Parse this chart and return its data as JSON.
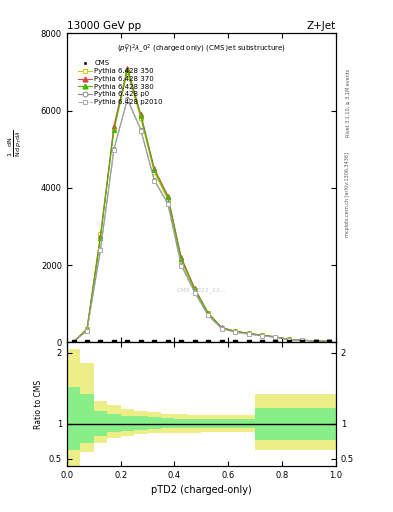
{
  "title_left": "13000 GeV pp",
  "title_right": "Z+Jet",
  "annotation": "$(p_T^D)^2\\lambda\\_0^2$ (charged only) (CMS jet substructure)",
  "right_label_top": "Rivet 3.1.10, ≥ 3.1M events",
  "right_label_bottom": "mcplots.cern.ch [arXiv:1306.3436]",
  "watermark": "CMS_2021_11...",
  "xlabel": "pTD2 (charged-only)",
  "xlim": [
    0.0,
    1.0
  ],
  "ylim_main": [
    0,
    8000
  ],
  "ylim_ratio": [
    0.4,
    2.15
  ],
  "x_centers": [
    0.025,
    0.075,
    0.125,
    0.175,
    0.225,
    0.275,
    0.325,
    0.375,
    0.425,
    0.475,
    0.525,
    0.575,
    0.625,
    0.675,
    0.725,
    0.775,
    0.825,
    0.875,
    0.925,
    0.975
  ],
  "x_edges": [
    0.0,
    0.05,
    0.1,
    0.15,
    0.2,
    0.25,
    0.3,
    0.35,
    0.4,
    0.45,
    0.5,
    0.55,
    0.6,
    0.65,
    0.7,
    0.75,
    0.8,
    0.85,
    0.9,
    0.95,
    1.0
  ],
  "p350_values": [
    15,
    350,
    2800,
    5500,
    7000,
    5800,
    4400,
    3700,
    2100,
    1350,
    750,
    380,
    280,
    230,
    180,
    140,
    75,
    55,
    35,
    25
  ],
  "p370_values": [
    15,
    340,
    2750,
    5600,
    7100,
    5900,
    4500,
    3800,
    2200,
    1400,
    760,
    385,
    285,
    235,
    185,
    143,
    76,
    56,
    36,
    26
  ],
  "p380_values": [
    15,
    335,
    2700,
    5500,
    7050,
    5850,
    4450,
    3750,
    2150,
    1370,
    755,
    382,
    282,
    232,
    182,
    141,
    75.5,
    55.5,
    35.5,
    25.5
  ],
  "pp0_values": [
    12,
    300,
    2400,
    5000,
    6300,
    5500,
    4200,
    3600,
    2000,
    1300,
    700,
    360,
    265,
    215,
    170,
    130,
    70,
    50,
    32,
    22
  ],
  "pp2010_values": [
    12,
    298,
    2380,
    4980,
    6280,
    5480,
    4180,
    3580,
    1980,
    1280,
    695,
    355,
    260,
    210,
    165,
    127,
    69,
    49,
    31,
    21
  ],
  "ratio_yellow_low": [
    0.38,
    0.6,
    0.73,
    0.79,
    0.83,
    0.85,
    0.86,
    0.86,
    0.87,
    0.87,
    0.88,
    0.88,
    0.88,
    0.88,
    0.62,
    0.62,
    0.62,
    0.62,
    0.62,
    0.62
  ],
  "ratio_yellow_high": [
    2.05,
    1.85,
    1.32,
    1.26,
    1.21,
    1.18,
    1.16,
    1.14,
    1.13,
    1.12,
    1.12,
    1.12,
    1.12,
    1.12,
    1.42,
    1.42,
    1.42,
    1.42,
    1.42,
    1.42
  ],
  "ratio_green_low": [
    0.62,
    0.73,
    0.83,
    0.88,
    0.9,
    0.91,
    0.92,
    0.93,
    0.94,
    0.94,
    0.94,
    0.94,
    0.94,
    0.94,
    0.77,
    0.77,
    0.77,
    0.77,
    0.77,
    0.77
  ],
  "ratio_green_high": [
    1.52,
    1.42,
    1.18,
    1.14,
    1.11,
    1.1,
    1.09,
    1.08,
    1.07,
    1.07,
    1.07,
    1.07,
    1.07,
    1.07,
    1.22,
    1.22,
    1.22,
    1.22,
    1.22,
    1.22
  ],
  "color_350": "#cccc00",
  "color_370": "#dd4444",
  "color_380": "#44bb00",
  "color_p0": "#888888",
  "color_p2010": "#aaaaaa",
  "color_cms": "#000000",
  "color_yellow": "#eeee88",
  "color_green": "#88ee88",
  "yticks_main": [
    0,
    2000,
    4000,
    6000,
    8000
  ],
  "ytick_labels_main": [
    "0",
    "2000",
    "4000",
    "6000",
    "8000"
  ],
  "yticks_ratio": [
    0.5,
    1.0,
    2.0
  ],
  "ytick_labels_ratio": [
    "0.5",
    "1",
    "2"
  ]
}
